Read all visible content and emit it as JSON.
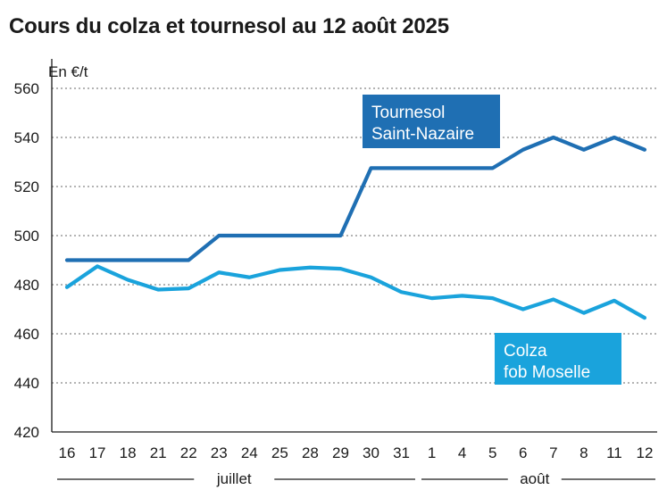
{
  "chart_data": {
    "type": "line",
    "title": "Cours du colza et tournesol au 12 août 2025",
    "ylabel": "En €/t",
    "ylim": [
      420,
      560
    ],
    "yticks": [
      420,
      440,
      460,
      480,
      500,
      520,
      540,
      560
    ],
    "grid": true,
    "categories": [
      "16",
      "17",
      "18",
      "21",
      "22",
      "23",
      "24",
      "25",
      "28",
      "29",
      "30",
      "31",
      "1",
      "4",
      "5",
      "6",
      "7",
      "8",
      "11",
      "12"
    ],
    "month_groups": [
      {
        "label": "juillet"
      },
      {
        "label": "août"
      }
    ],
    "series": [
      {
        "name": "Tournesol Saint-Nazaire",
        "label_lines": [
          "Tournesol",
          "Saint-Nazaire"
        ],
        "color": "#1f6fb3",
        "step": true,
        "values": [
          490,
          490,
          490,
          490,
          490,
          500,
          500,
          500,
          500,
          500,
          527.5,
          527.5,
          527.5,
          527.5,
          527.5,
          535,
          540,
          535,
          540,
          535
        ]
      },
      {
        "name": "Colza fob Moselle",
        "label_lines": [
          "Colza",
          "fob Moselle"
        ],
        "color": "#1aa3dc",
        "step": false,
        "values": [
          479,
          487.5,
          482,
          478,
          478.5,
          485,
          483,
          486,
          487,
          486.5,
          483,
          477,
          474.5,
          475.5,
          474.5,
          470,
          474,
          468.5,
          473.5,
          466.5
        ]
      }
    ]
  }
}
